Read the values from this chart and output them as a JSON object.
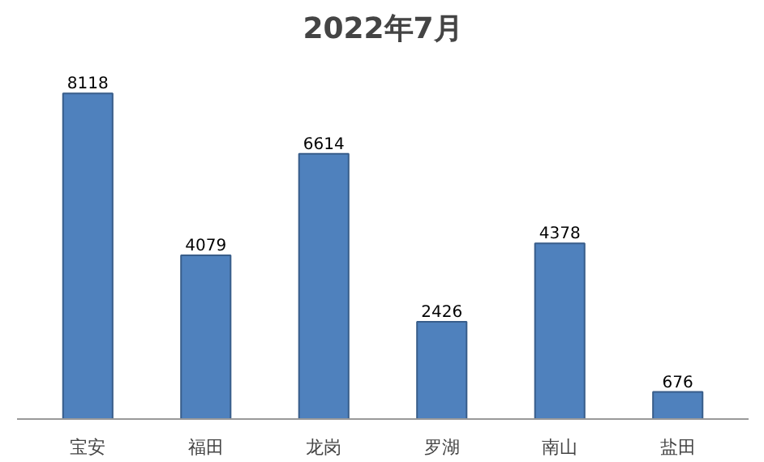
{
  "chart_data": {
    "type": "bar",
    "title": "2022年7月",
    "categories": [
      "宝安",
      "福田",
      "龙岗",
      "罗湖",
      "南山",
      "盐田"
    ],
    "values": [
      8118,
      4079,
      6614,
      2426,
      4378,
      676
    ],
    "color": "#4f81bd",
    "data_labels": true,
    "grid": false
  }
}
